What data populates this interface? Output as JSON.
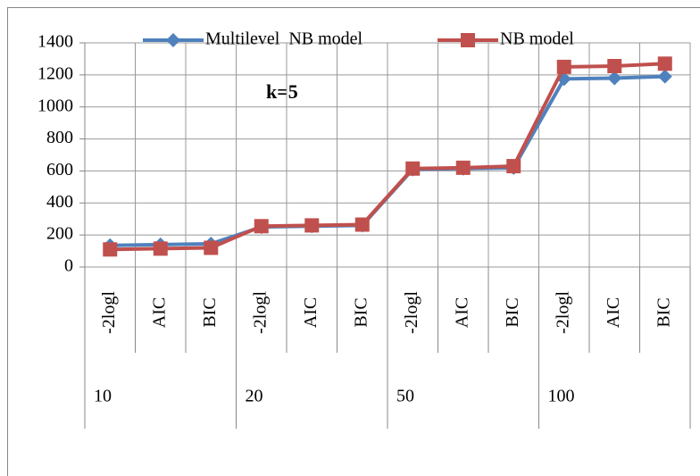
{
  "chart_data": {
    "type": "line",
    "annotation": "k=5",
    "categories": [
      "-2logl",
      "AIC",
      "BIC",
      "-2logl",
      "AIC",
      "BIC",
      "-2logl",
      "AIC",
      "BIC",
      "-2logl",
      "AIC",
      "BIC"
    ],
    "groups": [
      "10",
      "20",
      "50",
      "100"
    ],
    "series": [
      {
        "name": "Multilevel  NB model",
        "color": "#4f81bd",
        "marker": "diamond",
        "values": [
          135,
          140,
          145,
          250,
          255,
          260,
          610,
          615,
          620,
          1175,
          1180,
          1190
        ]
      },
      {
        "name": "NB model",
        "color": "#c0504d",
        "marker": "square",
        "values": [
          110,
          115,
          120,
          255,
          260,
          265,
          615,
          620,
          630,
          1250,
          1255,
          1270
        ]
      }
    ],
    "ylim": [
      0,
      1400
    ],
    "yticks": [
      0,
      200,
      400,
      600,
      800,
      1000,
      1200,
      1400
    ],
    "grid": true
  }
}
